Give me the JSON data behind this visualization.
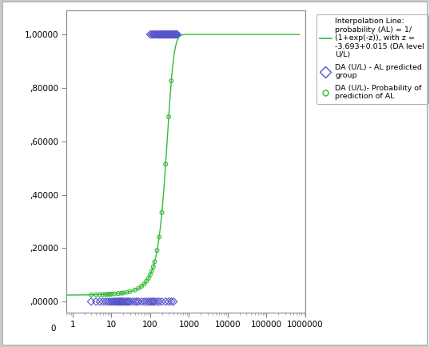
{
  "logistic_a": -3.693,
  "logistic_b": 0.015,
  "diamond_color": "#5555cc",
  "circle_color": "#33bb33",
  "line_color": "#33bb33",
  "background_color": "#ffffff",
  "border_color": "#cccccc",
  "ytick_vals": [
    0.0,
    0.2,
    0.4,
    0.6,
    0.8,
    1.0
  ],
  "ytick_labels": [
    ",00000",
    ",20000",
    ",40000",
    ",60000",
    ",80000",
    "1,00000"
  ],
  "legend_line_label": "Interpolation Line:\nprobability (AL) = 1/\n(1+exp(-z)), with z =\n-3.693+0.015 (DA level\nU/L)",
  "legend_diamond_label": "DA (U/L) - AL predicted\ngroup",
  "legend_circle_label": "DA (U/L)- Probability of\nprediction of AL",
  "x_ones": [
    100,
    110,
    120,
    125,
    130,
    140,
    150,
    160,
    170,
    175,
    180,
    190,
    200,
    210,
    220,
    230,
    240,
    250,
    260,
    270,
    280,
    290,
    300,
    310,
    320,
    330,
    340,
    350,
    360,
    370,
    380,
    390,
    400,
    420,
    440,
    460,
    480,
    500
  ],
  "x_zeros": [
    3,
    4,
    5,
    6,
    7,
    8,
    9,
    10,
    11,
    12,
    13,
    14,
    15,
    16,
    17,
    18,
    19,
    20,
    22,
    24,
    26,
    28,
    30,
    35,
    40,
    45,
    50,
    60,
    70,
    80,
    90,
    100,
    110,
    120,
    130,
    150,
    170,
    200,
    250,
    300,
    350,
    400
  ],
  "x_prob": [
    3,
    4,
    5,
    6,
    7,
    8,
    9,
    10,
    12,
    15,
    18,
    20,
    25,
    30,
    40,
    50,
    60,
    70,
    80,
    90,
    100,
    110,
    120,
    130,
    150,
    170,
    200,
    250,
    300,
    350
  ]
}
